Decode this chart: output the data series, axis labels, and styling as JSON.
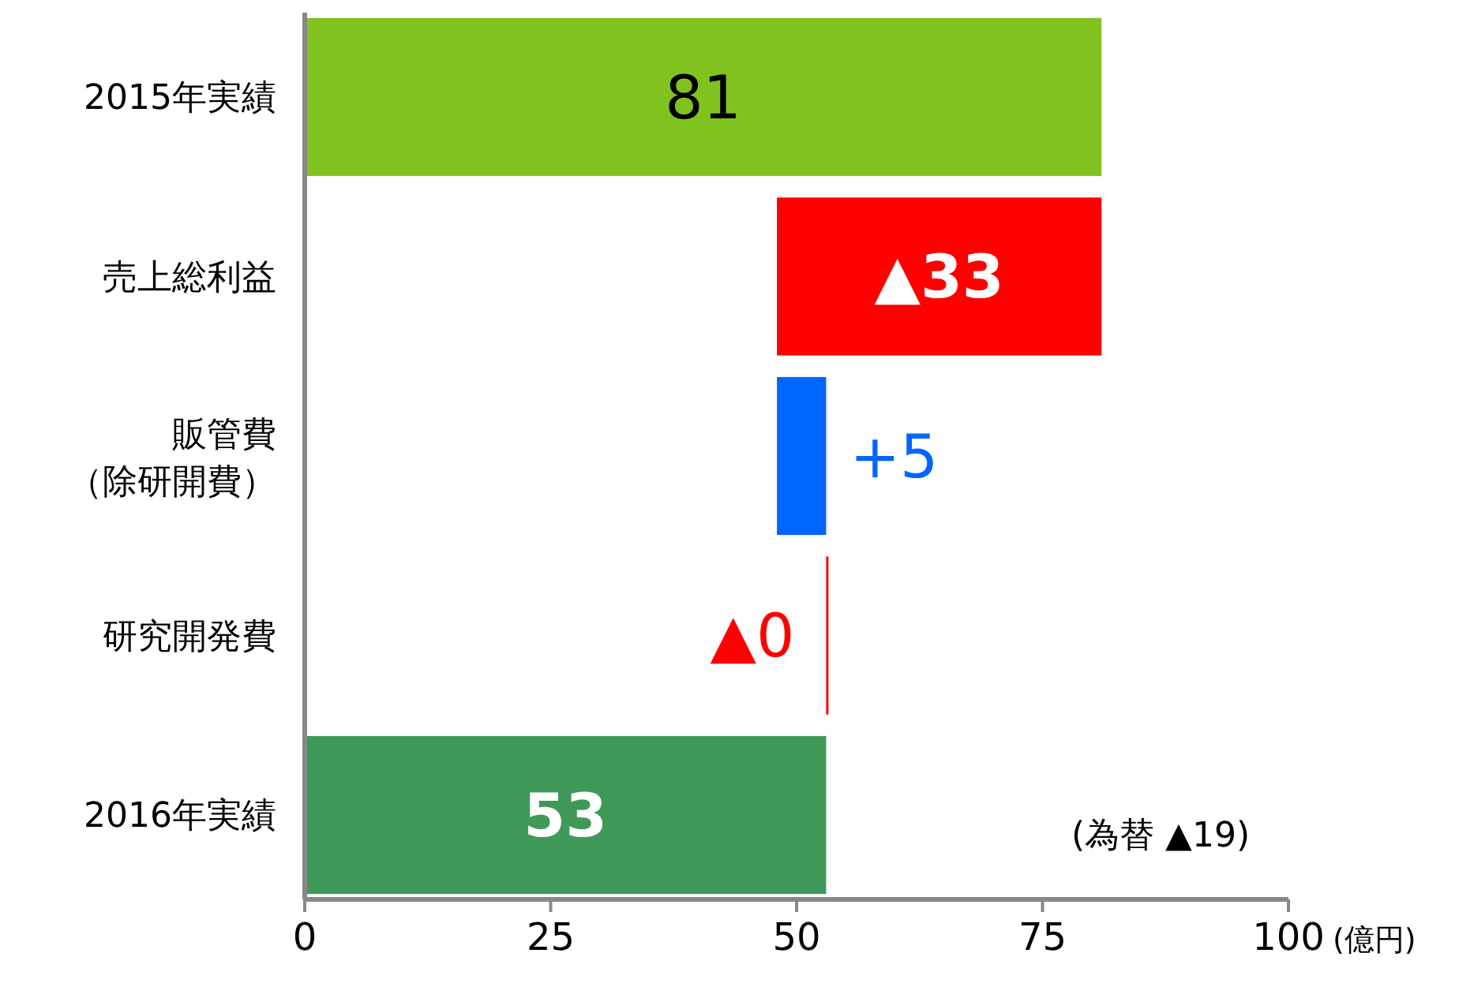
{
  "chart_data": {
    "type": "bar",
    "orientation": "horizontal",
    "categories": [
      "2015年実績",
      "売上総利益",
      "販管費（除研開費）",
      "研究開発費",
      "2016年実績"
    ],
    "values": [
      81,
      -33,
      5,
      0,
      53
    ],
    "base": [
      0,
      81,
      48,
      53,
      0
    ],
    "colors": [
      "#80c31f",
      "#ff0000",
      "#0066ff",
      "#ff0000",
      "#3f9a5a"
    ],
    "value_labels": [
      "81",
      "▲33",
      "+5",
      "▲0",
      "53"
    ],
    "xlim": [
      0,
      100
    ],
    "xticks": [
      0,
      25,
      50,
      75,
      100
    ],
    "xlabel": "(億円)",
    "annotations": [
      "(為替 ▲19)"
    ]
  }
}
